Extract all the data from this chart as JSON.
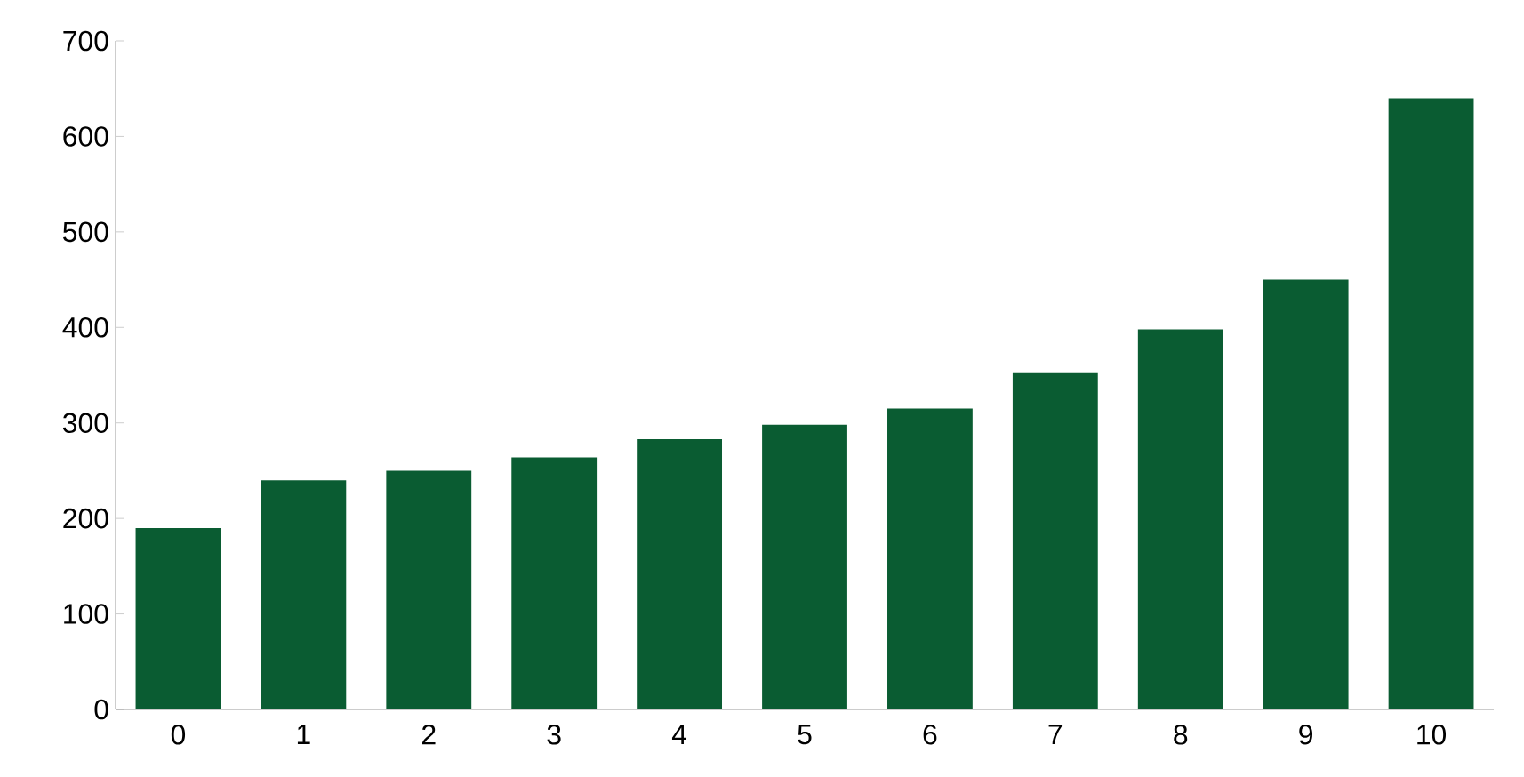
{
  "chart_data": {
    "type": "bar",
    "categories": [
      "0",
      "1",
      "2",
      "3",
      "4",
      "5",
      "6",
      "7",
      "8",
      "9",
      "10"
    ],
    "values": [
      190,
      240,
      250,
      264,
      283,
      298,
      315,
      352,
      398,
      450,
      640
    ],
    "color": "#0a5c32",
    "ylim": [
      0,
      700
    ],
    "yticks": [
      0,
      100,
      200,
      300,
      400,
      500,
      600,
      700
    ]
  }
}
